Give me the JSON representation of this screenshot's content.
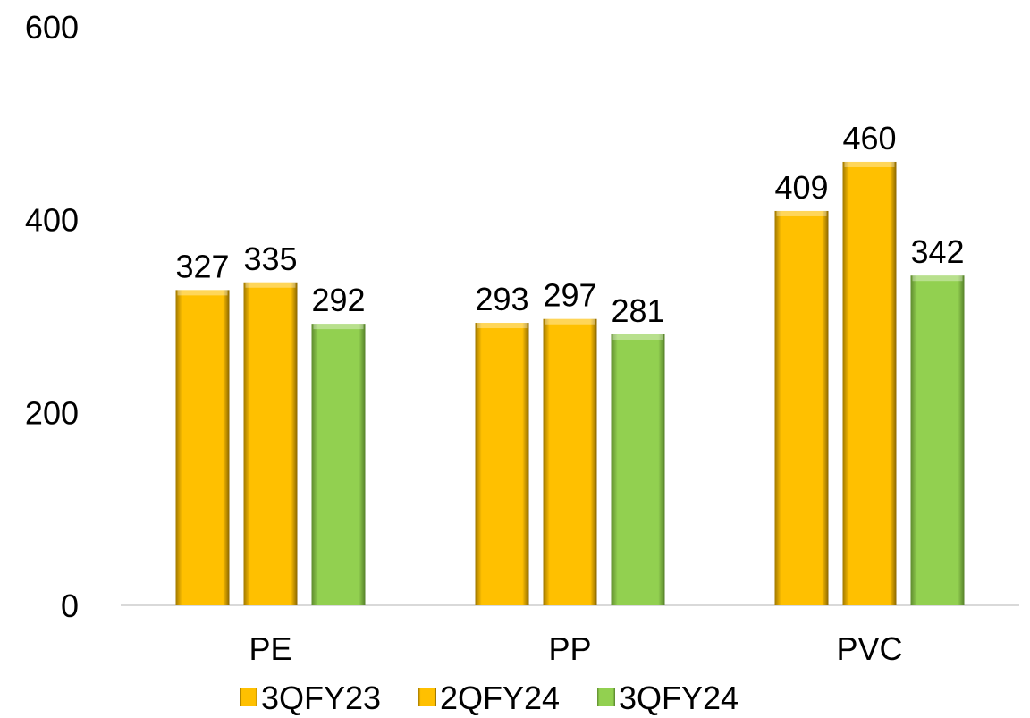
{
  "chart_data": {
    "type": "bar",
    "title": "",
    "xlabel": "",
    "ylabel": "",
    "categories": [
      "PE",
      "PP",
      "PVC"
    ],
    "series": [
      {
        "name": "3QFY23",
        "values": [
          327,
          293,
          409
        ],
        "color": "#FFC000"
      },
      {
        "name": "2QFY24",
        "values": [
          335,
          297,
          460
        ],
        "color": "#FFC000"
      },
      {
        "name": "3QFY24",
        "values": [
          292,
          281,
          342
        ],
        "color": "#92D050"
      }
    ],
    "ylim": [
      0,
      600
    ],
    "yticks": [
      "0",
      "200",
      "400",
      "600"
    ],
    "grid": false,
    "legend": "bottom",
    "data_labels": true
  }
}
